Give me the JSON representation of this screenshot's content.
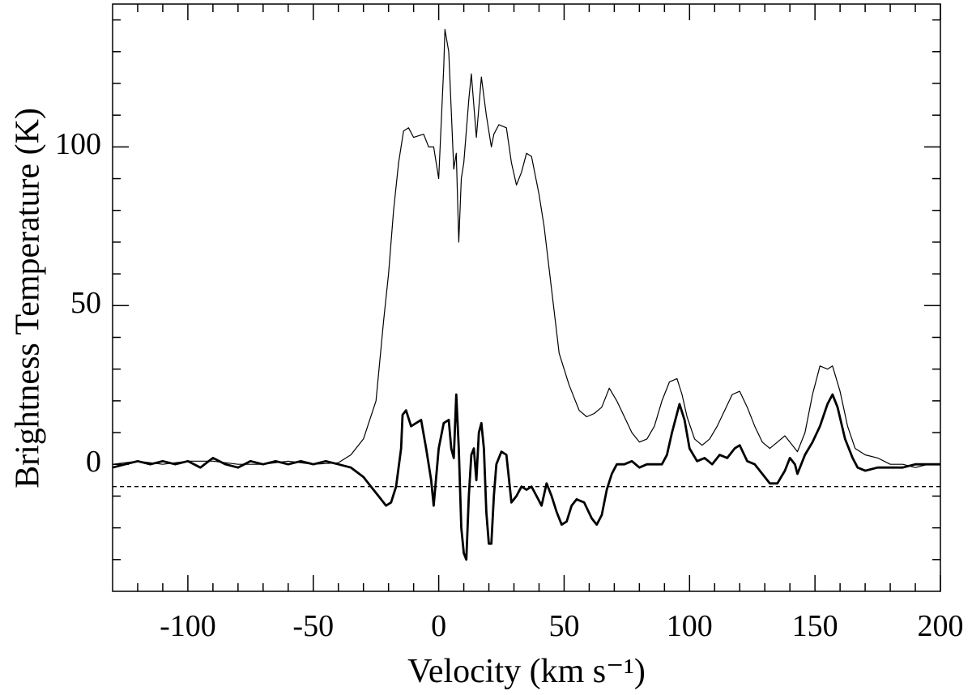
{
  "chart_data": {
    "type": "line",
    "xlabel": "Velocity (km s⁻¹)",
    "ylabel": "Brightness Temperature (K)",
    "xlim": [
      -130,
      200
    ],
    "ylim": [
      -40,
      145
    ],
    "xticks": [
      -100,
      -50,
      0,
      50,
      100,
      150,
      200
    ],
    "yticks": [
      0,
      50,
      100
    ],
    "xminorticks": [
      -120,
      -110,
      -90,
      -80,
      -70,
      -60,
      -40,
      -30,
      -20,
      -10,
      10,
      20,
      30,
      40,
      60,
      70,
      80,
      90,
      110,
      120,
      130,
      140,
      160,
      170,
      180,
      190
    ],
    "yminorticks": [
      -30,
      -20,
      -10,
      10,
      20,
      30,
      40,
      60,
      70,
      80,
      90,
      110,
      120,
      130,
      140
    ],
    "reference_line": {
      "value": -7,
      "style": "dashed",
      "color": "#000000"
    },
    "series": [
      {
        "color": "#000000",
        "line_width": 1.2,
        "x": [
          -130,
          -120,
          -110,
          -100,
          -90,
          -80,
          -70,
          -60,
          -50,
          -40,
          -35,
          -30,
          -25,
          -22,
          -20,
          -18,
          -16,
          -14,
          -12,
          -10,
          -6,
          -4,
          -2,
          0,
          2,
          2.5,
          4,
          6,
          7,
          8,
          9,
          10,
          12,
          13,
          15,
          17,
          19,
          21,
          22,
          24,
          27,
          29,
          31,
          33,
          35,
          37,
          40,
          42,
          45,
          48,
          52,
          56,
          59,
          62,
          65,
          68,
          71,
          74,
          77,
          80,
          83,
          86,
          89,
          92,
          95,
          97,
          99,
          102,
          105,
          108,
          111,
          114,
          117,
          120,
          123,
          126,
          129,
          132,
          135,
          138,
          141,
          143,
          146,
          149,
          152,
          155,
          157,
          160,
          163,
          166,
          170,
          175,
          180,
          185,
          190,
          195,
          200
        ],
        "values": [
          0,
          1,
          0,
          1,
          1,
          0,
          0,
          1,
          0,
          0.5,
          3,
          8,
          20,
          45,
          60,
          80,
          95,
          105,
          106,
          103,
          104,
          100,
          100,
          90,
          125,
          137,
          130,
          93,
          98,
          70,
          90,
          95,
          115,
          123,
          103,
          122,
          110,
          100,
          104,
          107,
          106,
          95,
          88,
          92,
          98,
          97,
          85,
          75,
          55,
          35,
          25,
          17,
          15,
          16,
          18,
          24,
          20,
          15,
          10,
          7,
          8,
          12,
          20,
          26,
          27,
          22,
          15,
          8,
          6,
          8,
          12,
          17,
          22,
          23,
          18,
          12,
          7,
          5,
          7,
          9,
          6,
          4,
          10,
          22,
          31,
          30,
          31,
          23,
          12,
          5,
          3,
          2,
          0,
          0,
          -1,
          0,
          0
        ]
      },
      {
        "color": "#000000",
        "line_width": 2.8,
        "x": [
          -130,
          -125,
          -120,
          -115,
          -110,
          -105,
          -100,
          -95,
          -90,
          -85,
          -80,
          -75,
          -70,
          -65,
          -60,
          -55,
          -50,
          -45,
          -40,
          -35,
          -30,
          -27,
          -24,
          -21,
          -19,
          -17,
          -15,
          -14.4,
          -13,
          -11,
          -9,
          -7,
          -5,
          -3,
          -2,
          0,
          2,
          4,
          5,
          6,
          7,
          8,
          9,
          10,
          11,
          12,
          13,
          14,
          15,
          16,
          17,
          18,
          19,
          20,
          21,
          22,
          23,
          25,
          27,
          29,
          31,
          33,
          35,
          37,
          39,
          41,
          43,
          45,
          47,
          49,
          51,
          53,
          55,
          58,
          61,
          63,
          65,
          67,
          69,
          71,
          74,
          77,
          80,
          83,
          86,
          89,
          91,
          93,
          96,
          98,
          100,
          103,
          106,
          109,
          112,
          115,
          118,
          120,
          123,
          126,
          129,
          132,
          135,
          138,
          140,
          142,
          143,
          146,
          149,
          152,
          155,
          157,
          159,
          162,
          165,
          167,
          170,
          175,
          180,
          185,
          190,
          195,
          200
        ],
        "values": [
          -1,
          0,
          1,
          0,
          1,
          0,
          1,
          -1,
          2,
          0,
          -1,
          1,
          0,
          1,
          0,
          1,
          0,
          1,
          0,
          -1,
          -4,
          -7,
          -10,
          -13,
          -12,
          -7,
          5,
          15.6,
          17,
          12,
          13,
          14,
          5,
          -5,
          -13,
          5,
          13,
          14,
          5,
          2,
          22,
          5,
          -20,
          -28,
          -30,
          -10,
          3,
          5,
          -5,
          10,
          13,
          5,
          -15,
          -25,
          -25,
          -10,
          0,
          4,
          3,
          -12,
          -10,
          -7,
          -8,
          -7,
          -10,
          -13,
          -6,
          -10,
          -15,
          -19,
          -18,
          -13,
          -11,
          -12,
          -17,
          -19,
          -16,
          -8,
          -3,
          0,
          0,
          1,
          -1,
          0,
          0,
          0,
          3,
          10,
          19,
          14,
          5,
          1,
          2,
          0,
          3,
          2,
          5,
          6,
          1,
          0,
          -3,
          -6,
          -6,
          -2,
          2,
          0,
          -3,
          3,
          7,
          12,
          19,
          22,
          18,
          8,
          2,
          -1,
          -2,
          -1,
          -1,
          -1,
          0,
          0,
          0
        ]
      }
    ]
  }
}
